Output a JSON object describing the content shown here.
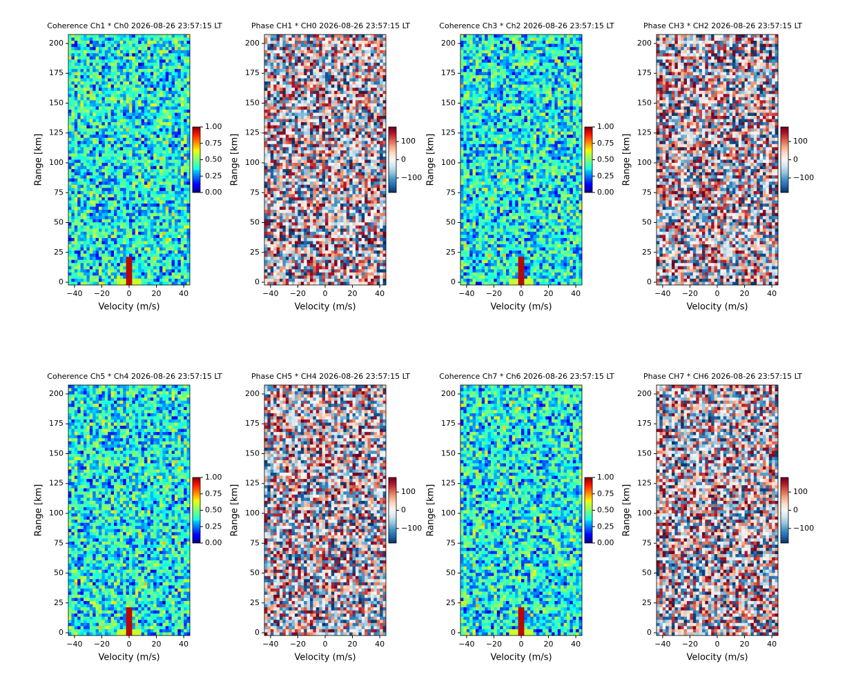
{
  "chart_data": [
    {
      "type": "heatmap",
      "title": "Coherence Ch1 * Ch0 2026-08-26 23:57:15 LT",
      "xlabel": "Velocity (m/s)",
      "ylabel": "Range [km]",
      "colormap": "jet",
      "xlim": [
        -44.5,
        44.5
      ],
      "ylim": [
        -2.3,
        207.5
      ],
      "xticks": [
        {
          "value": -40,
          "label": "−40"
        },
        {
          "value": -20,
          "label": "−20"
        },
        0,
        20,
        40
      ],
      "yticks": [
        0,
        25,
        50,
        75,
        100,
        125,
        150,
        175,
        200
      ],
      "clim": [
        0,
        1
      ],
      "cticks": [
        {
          "value": 0,
          "label": "0.00"
        },
        {
          "value": 0.25,
          "label": "0.25"
        },
        {
          "value": 0.5,
          "label": "0.50"
        },
        {
          "value": 0.75,
          "label": "0.75"
        },
        {
          "value": 1,
          "label": "1.00"
        }
      ]
    },
    {
      "type": "heatmap",
      "title": "Phase CH1 * CH0 2026-08-26 23:57:15 LT",
      "xlabel": "Velocity (m/s)",
      "ylabel": "Range [km]",
      "colormap": "RdBu_r",
      "xlim": [
        -44.5,
        44.5
      ],
      "ylim": [
        -2.3,
        207.5
      ],
      "xticks": [
        {
          "value": -40,
          "label": "−40"
        },
        {
          "value": -20,
          "label": "−20"
        },
        0,
        20,
        40
      ],
      "yticks": [
        0,
        25,
        50,
        75,
        100,
        125,
        150,
        175,
        200
      ],
      "clim": [
        -180,
        180
      ],
      "cticks": [
        {
          "value": -100,
          "label": "−100"
        },
        0,
        100
      ]
    },
    {
      "type": "heatmap",
      "title": "Coherence Ch3 * Ch2 2026-08-26 23:57:15 LT",
      "xlabel": "Velocity (m/s)",
      "ylabel": "Range [km]",
      "colormap": "jet",
      "xlim": [
        -44.5,
        44.5
      ],
      "ylim": [
        -2.3,
        207.5
      ],
      "xticks": [
        {
          "value": -40,
          "label": "−40"
        },
        {
          "value": -20,
          "label": "−20"
        },
        0,
        20,
        40
      ],
      "yticks": [
        0,
        25,
        50,
        75,
        100,
        125,
        150,
        175,
        200
      ],
      "clim": [
        0,
        1
      ],
      "cticks": [
        {
          "value": 0,
          "label": "0.00"
        },
        {
          "value": 0.25,
          "label": "0.25"
        },
        {
          "value": 0.5,
          "label": "0.50"
        },
        {
          "value": 0.75,
          "label": "0.75"
        },
        {
          "value": 1,
          "label": "1.00"
        }
      ]
    },
    {
      "type": "heatmap",
      "title": "Phase CH3 * CH2 2026-08-26 23:57:15 LT",
      "xlabel": "Velocity (m/s)",
      "ylabel": "Range [km]",
      "colormap": "RdBu_r",
      "xlim": [
        -44.5,
        44.5
      ],
      "ylim": [
        -2.3,
        207.5
      ],
      "xticks": [
        {
          "value": -40,
          "label": "−40"
        },
        {
          "value": -20,
          "label": "−20"
        },
        0,
        20,
        40
      ],
      "yticks": [
        0,
        25,
        50,
        75,
        100,
        125,
        150,
        175,
        200
      ],
      "clim": [
        -180,
        180
      ],
      "cticks": [
        {
          "value": -100,
          "label": "−100"
        },
        0,
        100
      ]
    },
    {
      "type": "heatmap",
      "title": "Coherence Ch5 * Ch4 2026-08-26 23:57:15 LT",
      "xlabel": "Velocity (m/s)",
      "ylabel": "Range [km]",
      "colormap": "jet",
      "xlim": [
        -44.5,
        44.5
      ],
      "ylim": [
        -2.3,
        207.5
      ],
      "xticks": [
        {
          "value": -40,
          "label": "−40"
        },
        {
          "value": -20,
          "label": "−20"
        },
        0,
        20,
        40
      ],
      "yticks": [
        0,
        25,
        50,
        75,
        100,
        125,
        150,
        175,
        200
      ],
      "clim": [
        0,
        1
      ],
      "cticks": [
        {
          "value": 0,
          "label": "0.00"
        },
        {
          "value": 0.25,
          "label": "0.25"
        },
        {
          "value": 0.5,
          "label": "0.50"
        },
        {
          "value": 0.75,
          "label": "0.75"
        },
        {
          "value": 1,
          "label": "1.00"
        }
      ]
    },
    {
      "type": "heatmap",
      "title": "Phase CH5 * CH4 2026-08-26 23:57:15 LT",
      "xlabel": "Velocity (m/s)",
      "ylabel": "Range [km]",
      "colormap": "RdBu_r",
      "xlim": [
        -44.5,
        44.5
      ],
      "ylim": [
        -2.3,
        207.5
      ],
      "xticks": [
        {
          "value": -40,
          "label": "−40"
        },
        {
          "value": -20,
          "label": "−20"
        },
        0,
        20,
        40
      ],
      "yticks": [
        0,
        25,
        50,
        75,
        100,
        125,
        150,
        175,
        200
      ],
      "clim": [
        -180,
        180
      ],
      "cticks": [
        {
          "value": -100,
          "label": "−100"
        },
        0,
        100
      ]
    },
    {
      "type": "heatmap",
      "title": "Coherence Ch7 * Ch6 2026-08-26 23:57:15 LT",
      "xlabel": "Velocity (m/s)",
      "ylabel": "Range [km]",
      "colormap": "jet",
      "xlim": [
        -44.5,
        44.5
      ],
      "ylim": [
        -2.3,
        207.5
      ],
      "xticks": [
        {
          "value": -40,
          "label": "−40"
        },
        {
          "value": -20,
          "label": "−20"
        },
        0,
        20,
        40
      ],
      "yticks": [
        0,
        25,
        50,
        75,
        100,
        125,
        150,
        175,
        200
      ],
      "clim": [
        0,
        1
      ],
      "cticks": [
        {
          "value": 0,
          "label": "0.00"
        },
        {
          "value": 0.25,
          "label": "0.25"
        },
        {
          "value": 0.5,
          "label": "0.50"
        },
        {
          "value": 0.75,
          "label": "0.75"
        },
        {
          "value": 1,
          "label": "1.00"
        }
      ]
    },
    {
      "type": "heatmap",
      "title": "Phase CH7 * CH6 2026-08-26 23:57:15 LT",
      "xlabel": "Velocity (m/s)",
      "ylabel": "Range [km]",
      "colormap": "RdBu_r",
      "xlim": [
        -44.5,
        44.5
      ],
      "ylim": [
        -2.3,
        207.5
      ],
      "xticks": [
        {
          "value": -40,
          "label": "−40"
        },
        {
          "value": -20,
          "label": "−20"
        },
        0,
        20,
        40
      ],
      "yticks": [
        0,
        25,
        50,
        75,
        100,
        125,
        150,
        175,
        200
      ],
      "clim": [
        -180,
        180
      ],
      "cticks": [
        {
          "value": -100,
          "label": "−100"
        },
        0,
        100
      ]
    }
  ]
}
